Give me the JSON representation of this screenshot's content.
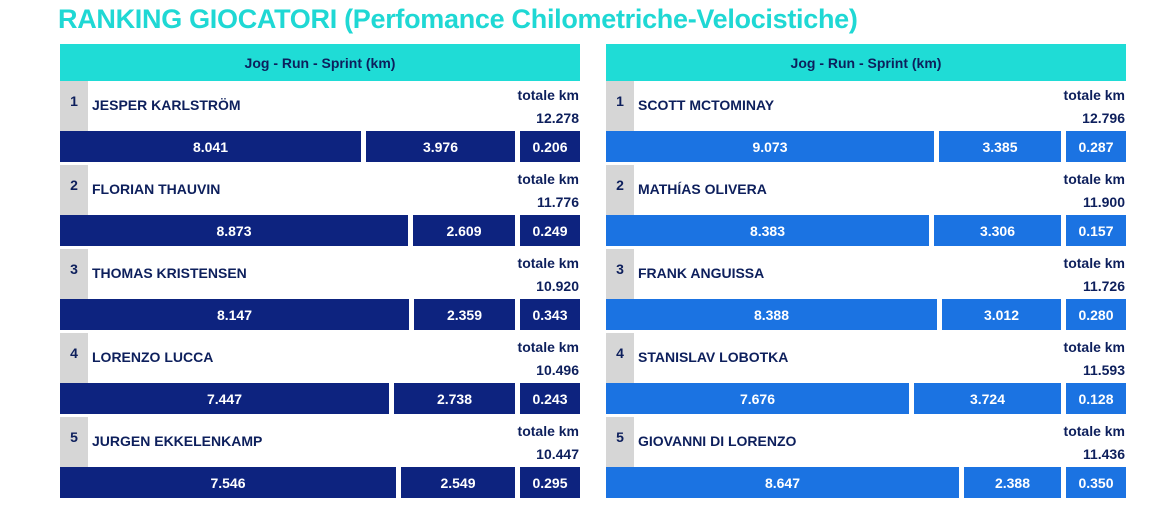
{
  "title": "RANKING GIOCATORI (Perfomance Chilometriche-Velocistiche)",
  "colors": {
    "title": "#1fd8d4",
    "header": "#1fdcd6",
    "left_bars": "#0d237f",
    "right_bars": "#1b73e2",
    "text": "#0d1f5c",
    "rank_bg": "#d6d6d6"
  },
  "chart_data": [
    {
      "type": "bar",
      "header": "Jog - Run - Sprint (km)",
      "total_label": "totale km",
      "players": [
        {
          "rank": "1",
          "name": "JESPER KARLSTRÖM",
          "total": "12.278",
          "jog": "8.041",
          "run": "3.976",
          "sprint": "0.206"
        },
        {
          "rank": "2",
          "name": "FLORIAN THAUVIN",
          "total": "11.776",
          "jog": "8.873",
          "run": "2.609",
          "sprint": "0.249"
        },
        {
          "rank": "3",
          "name": "THOMAS KRISTENSEN",
          "total": "10.920",
          "jog": "8.147",
          "run": "2.359",
          "sprint": "0.343"
        },
        {
          "rank": "4",
          "name": "LORENZO LUCCA",
          "total": "10.496",
          "jog": "7.447",
          "run": "2.738",
          "sprint": "0.243"
        },
        {
          "rank": "5",
          "name": "JURGEN EKKELENKAMP",
          "total": "10.447",
          "jog": "7.546",
          "run": "2.549",
          "sprint": "0.295"
        }
      ]
    },
    {
      "type": "bar",
      "header": "Jog - Run - Sprint (km)",
      "total_label": "totale km",
      "players": [
        {
          "rank": "1",
          "name": "SCOTT MCTOMINAY",
          "total": "12.796",
          "jog": "9.073",
          "run": "3.385",
          "sprint": "0.287"
        },
        {
          "rank": "2",
          "name": "MATHÍAS OLIVERA",
          "total": "11.900",
          "jog": "8.383",
          "run": "3.306",
          "sprint": "0.157"
        },
        {
          "rank": "3",
          "name": "FRANK ANGUISSA",
          "total": "11.726",
          "jog": "8.388",
          "run": "3.012",
          "sprint": "0.280"
        },
        {
          "rank": "4",
          "name": "STANISLAV LOBOTKA",
          "total": "11.593",
          "jog": "7.676",
          "run": "3.724",
          "sprint": "0.128"
        },
        {
          "rank": "5",
          "name": "GIOVANNI DI LORENZO",
          "total": "11.436",
          "jog": "8.647",
          "run": "2.388",
          "sprint": "0.350"
        }
      ]
    }
  ]
}
